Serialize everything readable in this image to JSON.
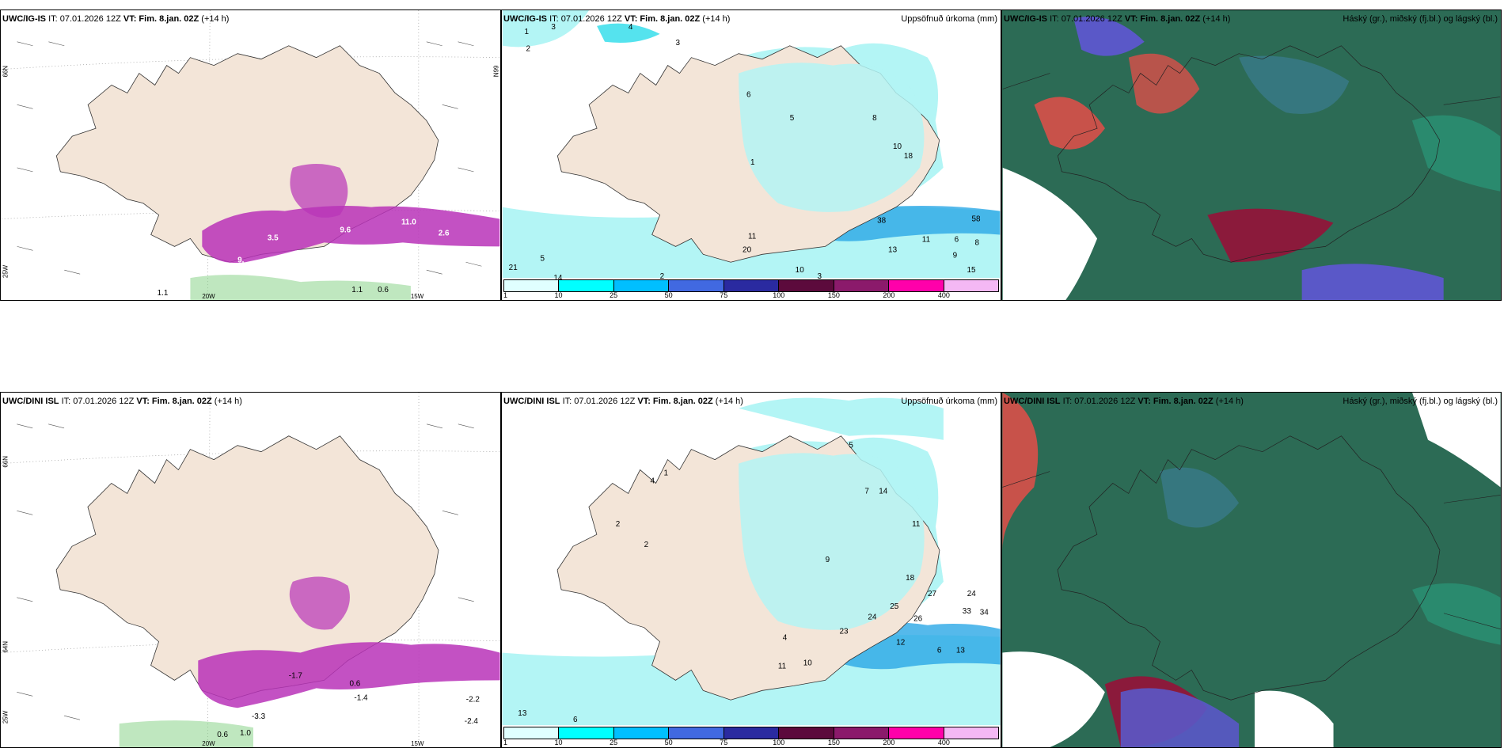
{
  "rows": [
    {
      "model": "UWC/IG-IS",
      "it": "IT: 07.01.2026 12Z",
      "vt_label": "VT:",
      "vt": "Fim. 8.jan. 02Z",
      "lead": "(+14 h)"
    },
    {
      "model": "UWC/DINI ISL",
      "it": "IT: 07.01.2026 12Z",
      "vt_label": "VT:",
      "vt": "Fim. 8.jan. 02Z",
      "lead": "(+14 h)"
    }
  ],
  "precip_title": "Uppsöfnuð úrkoma (mm)",
  "cloud_title": "Háský (gr.), miðský (fj.bl.) og lágský (bl.)",
  "colorbar": {
    "ticks": [
      "1",
      "10",
      "25",
      "50",
      "75",
      "100",
      "150",
      "200",
      "400"
    ],
    "colors": [
      "#e0ffff",
      "#00ffff",
      "#00bfff",
      "#4169e1",
      "#2a2aa0",
      "#5c0a3c",
      "#8b1a6b",
      "#ff00aa",
      "#f4b8f4"
    ]
  },
  "axis_labels": {
    "lon_20w": "20W",
    "lon_15w": "15W",
    "lon_25w": "25W",
    "lat_66n": "66N",
    "lat_64n": "64N"
  },
  "top_temp_labels": [
    "3.5",
    "9.",
    "11.0",
    "2.6",
    "1.1",
    "1.1",
    "0.6",
    "9.6"
  ],
  "bottom_temp_labels": [
    "-1.7",
    "0.6",
    "-3.3",
    "-2.4",
    "-2.2",
    "0.6",
    "1.0",
    "-1.4"
  ],
  "top_precip_labels": [
    "1",
    "3",
    "2",
    "4",
    "3",
    "6",
    "5",
    "8",
    "10",
    "18",
    "1",
    "11",
    "38",
    "58",
    "20",
    "21",
    "5",
    "14",
    "2",
    "3",
    "10",
    "15",
    "13",
    "11",
    "9",
    "6",
    "8"
  ],
  "bottom_precip_labels": [
    "4",
    "1",
    "2",
    "5",
    "7",
    "14",
    "11",
    "9",
    "18",
    "27",
    "24",
    "33",
    "34",
    "25",
    "26",
    "24",
    "23",
    "13",
    "12",
    "10",
    "11",
    "6",
    "2",
    "6",
    "4",
    "13"
  ],
  "colors": {
    "land": "#f3e5d8",
    "sea": "#ffffff",
    "cyan_light": "#b3f5f5",
    "cyan": "#55e3ee",
    "blue": "#2aa8e6",
    "magenta": "#b833b8",
    "cloud_high": "#2c6b55",
    "cloud_mid": "#c8524a",
    "cloud_low": "#5a58c8"
  }
}
